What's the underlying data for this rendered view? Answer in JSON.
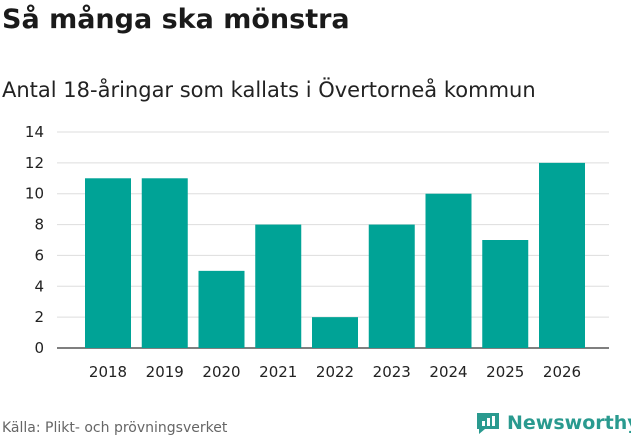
{
  "chart_data": {
    "type": "bar",
    "title": "Så många ska mönstra",
    "subtitle": "Antal 18-åringar som kallats i Övertorneå kommun",
    "categories": [
      "2018",
      "2019",
      "2020",
      "2021",
      "2022",
      "2023",
      "2024",
      "2025",
      "2026"
    ],
    "values": [
      11,
      11,
      5,
      8,
      2,
      8,
      10,
      7,
      12
    ],
    "ylim": [
      0,
      14
    ],
    "yticks": [
      0,
      2,
      4,
      6,
      8,
      10,
      12,
      14
    ],
    "xlabel": "",
    "ylabel": "",
    "grid": true,
    "bar_color": "#00a396"
  },
  "footer": {
    "source": "Källa: Plikt- och prövningsverket",
    "brand": "Newsworthy",
    "brand_icon": "newsworthy-logo-icon",
    "brand_color": "#2a9a8f"
  }
}
